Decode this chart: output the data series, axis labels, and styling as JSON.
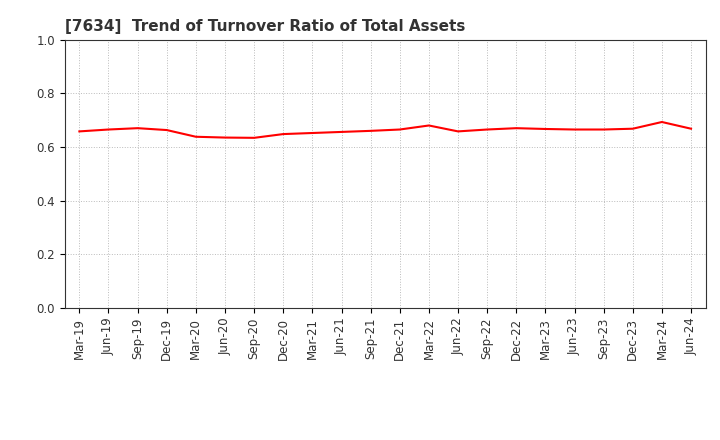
{
  "title": "[7634]  Trend of Turnover Ratio of Total Assets",
  "x_labels": [
    "Mar-19",
    "Jun-19",
    "Sep-19",
    "Dec-19",
    "Mar-20",
    "Jun-20",
    "Sep-20",
    "Dec-20",
    "Mar-21",
    "Jun-21",
    "Sep-21",
    "Dec-21",
    "Mar-22",
    "Jun-22",
    "Sep-22",
    "Dec-22",
    "Mar-23",
    "Jun-23",
    "Sep-23",
    "Dec-23",
    "Mar-24",
    "Jun-24"
  ],
  "y_values": [
    0.658,
    0.665,
    0.67,
    0.663,
    0.638,
    0.635,
    0.634,
    0.648,
    0.652,
    0.656,
    0.66,
    0.665,
    0.68,
    0.658,
    0.665,
    0.67,
    0.667,
    0.665,
    0.665,
    0.668,
    0.693,
    0.668
  ],
  "line_color": "#ff0000",
  "line_width": 1.5,
  "ylim": [
    0.0,
    1.0
  ],
  "yticks": [
    0.0,
    0.2,
    0.4,
    0.6,
    0.8,
    1.0
  ],
  "background_color": "#ffffff",
  "grid_color": "#bbbbbb",
  "title_fontsize": 11,
  "tick_fontsize": 8.5,
  "title_color": "#333333"
}
